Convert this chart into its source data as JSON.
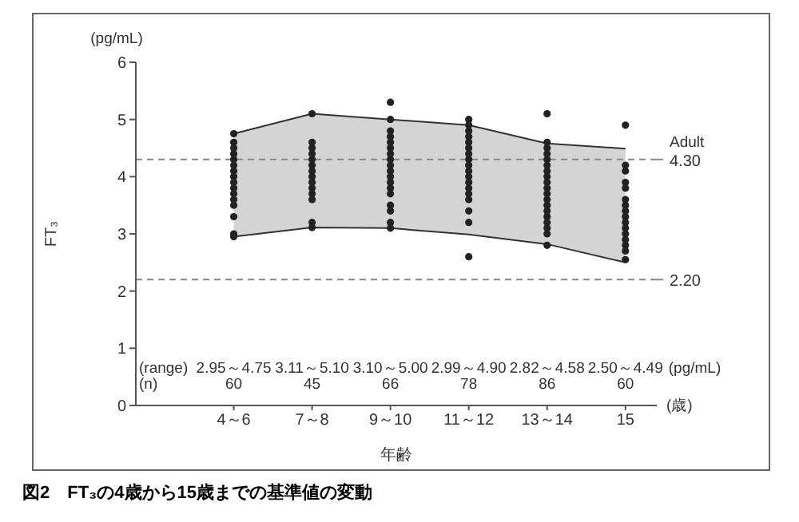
{
  "chart_data": {
    "type": "scatter",
    "title": "図2　FT₃の4歳から15歳までの基準値の変動",
    "xlabel": "年齢",
    "ylabel": "FT₃",
    "categories": [
      "4～6",
      "7～8",
      "9～10",
      "11～12",
      "13～14",
      "15"
    ],
    "ylim": [
      0,
      6
    ],
    "yticks": [
      0,
      1,
      2,
      3,
      4,
      5,
      6
    ],
    "grid": false,
    "legend": false,
    "marker": "circle",
    "series": [
      {
        "type": "area",
        "color": "#d4d4d4",
        "values": [
          null,
          null,
          null,
          null,
          null,
          null
        ],
        "lower": [
          2.95,
          3.11,
          3.1,
          2.99,
          2.82,
          2.5
        ],
        "upper": [
          4.75,
          5.1,
          5.0,
          4.9,
          4.58,
          4.49
        ]
      },
      {
        "type": "line",
        "color": "#333333",
        "marker": "none",
        "values": [
          4.75,
          5.1,
          5.0,
          4.9,
          4.58,
          4.49
        ]
      },
      {
        "type": "line",
        "color": "#333333",
        "marker": "none",
        "values": [
          2.95,
          3.11,
          3.1,
          2.99,
          2.82,
          2.5
        ]
      },
      {
        "color": "#222222",
        "x": [
          "4～6",
          "4～6",
          "4～6",
          "4～6",
          "4～6",
          "4～6",
          "4～6",
          "4～6",
          "4～6",
          "4～6",
          "4～6",
          "4～6",
          "4～6",
          "4～6",
          "4～6",
          "4～6",
          "7～8",
          "7～8",
          "7～8",
          "7～8",
          "7～8",
          "7～8",
          "7～8",
          "7～8",
          "7～8",
          "7～8",
          "7～8",
          "7～8",
          "7～8",
          "7～8",
          "9～10",
          "9～10",
          "9～10",
          "9～10",
          "9～10",
          "9～10",
          "9～10",
          "9～10",
          "9～10",
          "9～10",
          "9～10",
          "9～10",
          "9～10",
          "9～10",
          "9～10",
          "9～10",
          "9～10",
          "9～10",
          "11～12",
          "11～12",
          "11～12",
          "11～12",
          "11～12",
          "11～12",
          "11～12",
          "11～12",
          "11～12",
          "11～12",
          "11～12",
          "11～12",
          "11～12",
          "11～12",
          "11～12",
          "11～12",
          "11～12",
          "11～12",
          "13～14",
          "13～14",
          "13～14",
          "13～14",
          "13～14",
          "13～14",
          "13～14",
          "13～14",
          "13～14",
          "13～14",
          "13～14",
          "13～14",
          "13～14",
          "13～14",
          "13～14",
          "13～14",
          "13～14",
          "13～14",
          "13～14",
          "15",
          "15",
          "15",
          "15",
          "15",
          "15",
          "15",
          "15",
          "15",
          "15",
          "15",
          "15",
          "15",
          "15",
          "15",
          "15"
        ],
        "values": [
          2.95,
          3.0,
          3.3,
          3.5,
          3.6,
          3.7,
          3.8,
          3.9,
          4.0,
          4.1,
          4.2,
          4.3,
          4.4,
          4.5,
          4.6,
          4.75,
          3.11,
          3.2,
          3.6,
          3.7,
          3.8,
          3.9,
          4.0,
          4.1,
          4.2,
          4.3,
          4.4,
          4.5,
          4.6,
          5.1,
          3.1,
          3.2,
          3.4,
          3.5,
          3.7,
          3.8,
          3.9,
          4.0,
          4.1,
          4.2,
          4.3,
          4.4,
          4.5,
          4.6,
          4.7,
          4.8,
          5.0,
          5.3,
          2.6,
          3.2,
          3.4,
          3.6,
          3.7,
          3.8,
          3.9,
          4.0,
          4.1,
          4.2,
          4.3,
          4.4,
          4.5,
          4.6,
          4.7,
          4.8,
          4.9,
          5.0,
          2.8,
          3.0,
          3.1,
          3.2,
          3.3,
          3.4,
          3.5,
          3.6,
          3.7,
          3.8,
          3.9,
          4.0,
          4.1,
          4.2,
          4.3,
          4.4,
          4.5,
          4.6,
          5.1,
          2.55,
          2.7,
          2.8,
          2.9,
          3.0,
          3.1,
          3.2,
          3.3,
          3.4,
          3.5,
          3.6,
          3.8,
          3.9,
          4.1,
          4.2,
          4.9
        ]
      }
    ],
    "ref_lines": [
      {
        "axis": "y",
        "value": 4.3,
        "label": "4.30",
        "color": "#888888",
        "line_style": "dashed"
      },
      {
        "axis": "y",
        "value": 2.2,
        "label": "2.20",
        "color": "#888888",
        "line_style": "dashed"
      }
    ],
    "annotations": [
      "(range)",
      "(n)",
      "(pg/mL)",
      "(歳)",
      "(pg/mL)",
      "Adult",
      "2.95～4.75",
      "3.11～5.10",
      "3.10～5.00",
      "2.99～4.90",
      "2.82～4.58",
      "2.50～4.49",
      "60",
      "45",
      "66",
      "78",
      "86",
      "60"
    ]
  }
}
